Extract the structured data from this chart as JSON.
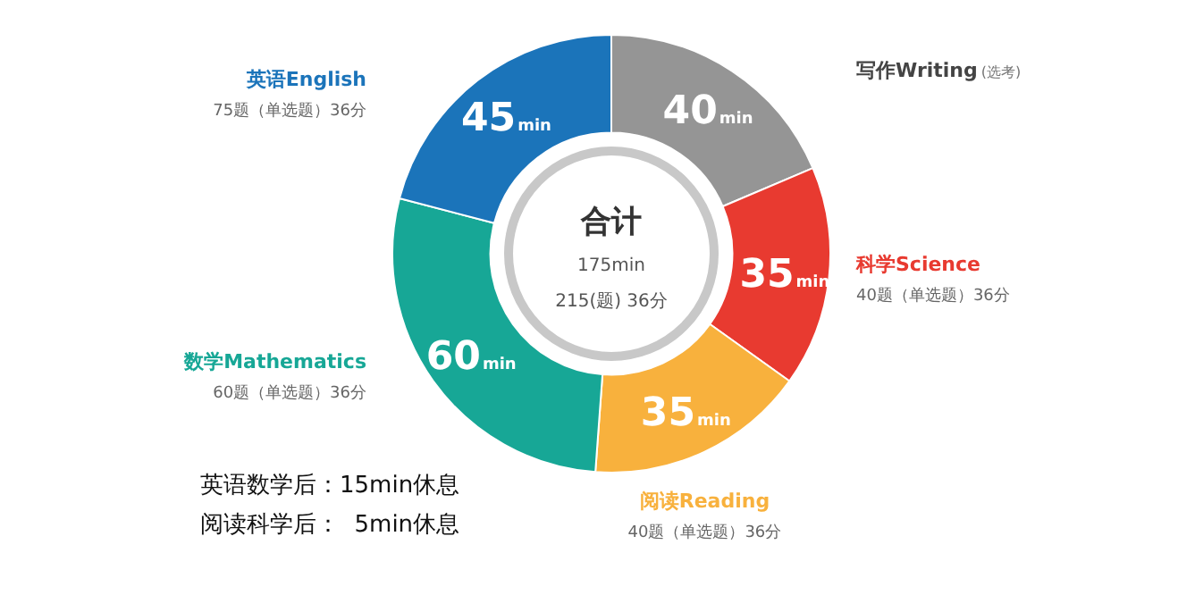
{
  "chart_data": {
    "type": "donut",
    "title": "合计",
    "subtitle": "175min",
    "categories": [
      "写作Writing",
      "科学Science",
      "阅读Reading",
      "数学Mathematics",
      "英语English"
    ],
    "values": [
      40,
      35,
      35,
      60,
      45
    ],
    "colors": [
      "#959595",
      "#e83a30",
      "#f8b13d",
      "#17a796",
      "#1b74ba"
    ],
    "value_labels": [
      "40min",
      "35min",
      "35min",
      "60min",
      "45min"
    ],
    "annotations": [
      "(选考)",
      "40题（单选题）36分",
      "40题（单选题）36分",
      "60题（单选题）36分",
      "75题（单选题）36分",
      "215(题) 36分",
      "英语数学后：15min休息",
      "阅读科学后：  5min休息"
    ],
    "legend": false
  }
}
